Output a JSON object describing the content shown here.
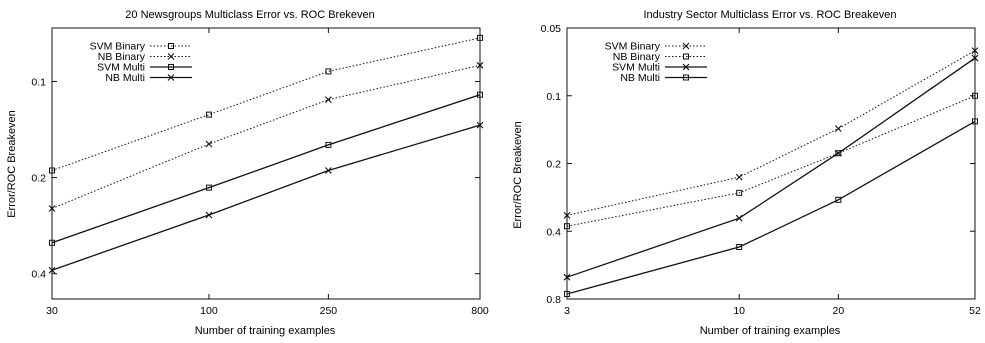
{
  "chart_data": [
    {
      "type": "line",
      "title": "20 Newsgroups Multiclass Error vs. ROC Brekeven",
      "xlabel": "Number of training examples",
      "ylabel": "Error/ROC Breakeven",
      "x_scale": "log",
      "y_scale": "log",
      "y_inverted": true,
      "x": [
        30,
        100,
        250,
        800
      ],
      "x_tick_labels": [
        "30",
        "100",
        "250",
        "800"
      ],
      "y_ticks": [
        0.1,
        0.2,
        0.4
      ],
      "y_tick_labels": [
        "0.1",
        "0.2",
        "0.4"
      ],
      "xlim": [
        30,
        800
      ],
      "ylim": [
        0.48,
        0.068
      ],
      "legend_position": "top-left",
      "series": [
        {
          "name": "SVM Binary",
          "marker": "square",
          "style": "dotted",
          "values": [
            0.19,
            0.127,
            0.093,
            0.073
          ]
        },
        {
          "name": "NB Binary",
          "marker": "x",
          "style": "dotted",
          "values": [
            0.25,
            0.157,
            0.114,
            0.089
          ]
        },
        {
          "name": "SVM Multi",
          "marker": "square",
          "style": "solid",
          "values": [
            0.32,
            0.215,
            0.158,
            0.11
          ]
        },
        {
          "name": "NB Multi",
          "marker": "x",
          "style": "solid",
          "values": [
            0.39,
            0.262,
            0.19,
            0.137
          ]
        }
      ]
    },
    {
      "type": "line",
      "title": "Industry Sector Multiclass Error vs. ROC Breakeven",
      "xlabel": "Number of training examples",
      "ylabel": "Error/ROC Breakeven",
      "x_scale": "log",
      "y_scale": "log",
      "y_inverted": true,
      "x": [
        3,
        10,
        20,
        52
      ],
      "x_tick_labels": [
        "3",
        "10",
        "20",
        "52"
      ],
      "y_ticks": [
        0.05,
        0.1,
        0.2,
        0.4,
        0.8
      ],
      "y_tick_labels": [
        "0.05",
        "0.1",
        "0.2",
        "0.4",
        "0.8"
      ],
      "xlim": [
        3,
        52
      ],
      "ylim": [
        0.8,
        0.05
      ],
      "legend_position": "top-left",
      "series": [
        {
          "name": "SVM Binary",
          "marker": "x",
          "style": "dotted",
          "values": [
            0.34,
            0.23,
            0.14,
            0.063
          ]
        },
        {
          "name": "NB Binary",
          "marker": "square",
          "style": "dotted",
          "values": [
            0.38,
            0.27,
            0.18,
            0.1
          ]
        },
        {
          "name": "SVM Multi",
          "marker": "x",
          "style": "solid",
          "values": [
            0.64,
            0.35,
            0.18,
            0.068
          ]
        },
        {
          "name": "NB Multi",
          "marker": "square",
          "style": "solid",
          "values": [
            0.76,
            0.47,
            0.29,
            0.13
          ]
        }
      ]
    }
  ]
}
